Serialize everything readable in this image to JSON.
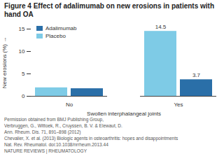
{
  "chart_data": {
    "type": "bar",
    "title": "Figure 4 Effect of adalimumab on new erosions in patients with hand OA",
    "x_label": "Swollen interphalangeal joints",
    "y_label": "New erosions (%)",
    "categories": [
      "No",
      "Yes"
    ],
    "series": [
      {
        "name": "Adalimumab",
        "color": "#2a6fa8",
        "values": [
          1.7,
          3.7
        ],
        "value_labels": [
          null,
          "3.7"
        ]
      },
      {
        "name": "Placebo",
        "color": "#7ecbe6",
        "values": [
          1.9,
          14.5
        ],
        "value_labels": [
          null,
          "14.5"
        ]
      }
    ],
    "ylim": [
      0,
      15
    ],
    "yticks": [
      0,
      5,
      10,
      15
    ],
    "grid": false,
    "legend": "upper left",
    "data_labels": true,
    "credits": [
      "Permission obtained from BMJ Publishing Group,",
      "Verbruggen, G., Wittoek, R., Cruyssen, B. V. & Elewaut, D.",
      "Ann. Rheum. Dis. 71, 891–898 (2012)",
      "Chevalier, X. et al. (2013) Biologic agents in osteoarthritis: hopes and disappointments",
      "Nat. Rev. Rheumatol. doi:10.1038/nrrheum.2013.44",
      "NATURE REVIEWS | RHEUMATOLOGY"
    ]
  }
}
